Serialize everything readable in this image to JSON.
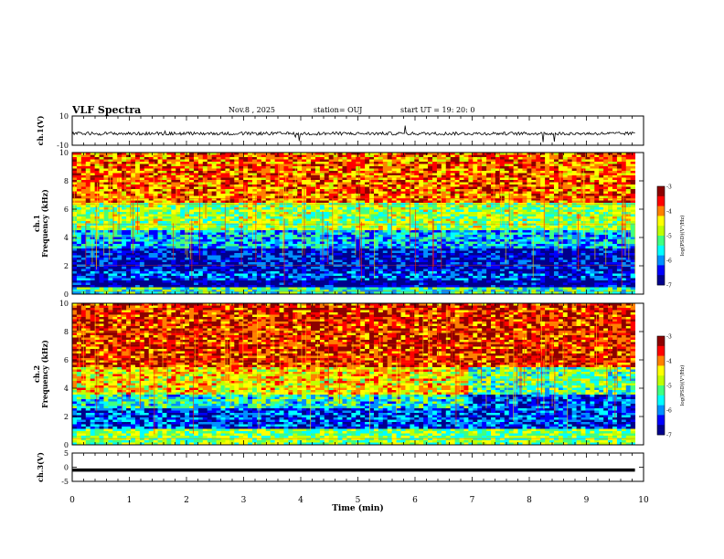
{
  "header": {
    "title": "VLF Spectra",
    "date": "Nov.8 , 2025",
    "station": "station= OUJ",
    "start_time": "start UT = 19: 20: 0"
  },
  "chart_data": [
    {
      "type": "line",
      "panel": "ch.1 waveform",
      "ylabel": "ch.1(V)",
      "ylim": [
        -10,
        10
      ],
      "yticks": [
        "10",
        "-10"
      ],
      "xlim": [
        0,
        10
      ],
      "series": [
        {
          "values_summary": "noisy trace around -2 V with occasional spikes",
          "baseline": -2
        }
      ]
    },
    {
      "type": "heatmap",
      "panel": "ch.1 spectrogram",
      "ylabel": "ch.1\nFrequency (kHz)",
      "ylim": [
        0,
        10
      ],
      "yticks": [
        "0",
        "2",
        "4",
        "6",
        "8",
        "10"
      ],
      "xlim": [
        0,
        10
      ],
      "colorbar": {
        "label": "log(PSD)(V²/Hz)",
        "range": [
          -7,
          -3
        ],
        "ticks": [
          "-3",
          "-4",
          "-5",
          "-6",
          "-7"
        ]
      },
      "bands_khz": [
        {
          "from": 0.0,
          "to": 0.5,
          "level": -5.4
        },
        {
          "from": 0.5,
          "to": 1.0,
          "level": -6.9
        },
        {
          "from": 1.0,
          "to": 1.6,
          "level": -6.3
        },
        {
          "from": 1.6,
          "to": 3.2,
          "level": -6.6
        },
        {
          "from": 3.2,
          "to": 4.5,
          "level": -5.8
        },
        {
          "from": 4.5,
          "to": 6.5,
          "level": -4.9
        },
        {
          "from": 6.5,
          "to": 10.0,
          "level": -3.9
        }
      ]
    },
    {
      "type": "heatmap",
      "panel": "ch.2 spectrogram",
      "ylabel": "ch.2\nFrequency (kHz)",
      "ylim": [
        0,
        10
      ],
      "yticks": [
        "0",
        "2",
        "4",
        "6",
        "8",
        "10"
      ],
      "xlim": [
        0,
        10
      ],
      "colorbar": {
        "label": "log(PSD)(V²/Hz)",
        "range": [
          -7,
          -3
        ],
        "ticks": [
          "-3",
          "-4",
          "-5",
          "-6",
          "-7"
        ]
      },
      "bands_khz": [
        {
          "from": 0.0,
          "to": 1.2,
          "level": -5.0
        },
        {
          "from": 1.2,
          "to": 2.6,
          "level": -6.3
        },
        {
          "from": 2.6,
          "to": 3.6,
          "level": -5.5
        },
        {
          "from": 3.6,
          "to": 5.5,
          "level": -4.4
        },
        {
          "from": 5.5,
          "to": 10.0,
          "level": -3.6
        }
      ],
      "note_transition_min": 6.9
    },
    {
      "type": "line",
      "panel": "ch.3 waveform",
      "ylabel": "ch.3(V)",
      "ylim": [
        -5,
        5
      ],
      "yticks": [
        "5",
        "0",
        "-5"
      ],
      "xlim": [
        0,
        10
      ],
      "series": [
        {
          "values_summary": "flat trace",
          "baseline": -1
        }
      ]
    }
  ],
  "xaxis": {
    "label": "Time (min)",
    "ticks": [
      "0",
      "1",
      "2",
      "3",
      "4",
      "5",
      "6",
      "7",
      "8",
      "9",
      "10"
    ],
    "data_end_min": 9.85
  },
  "colors": {
    "colormap": [
      "#00008c",
      "#0000ff",
      "#0090ff",
      "#00ffff",
      "#40ff80",
      "#c0ff00",
      "#ffff00",
      "#ff8000",
      "#ff0000",
      "#8c0000"
    ],
    "line": "#000000"
  }
}
